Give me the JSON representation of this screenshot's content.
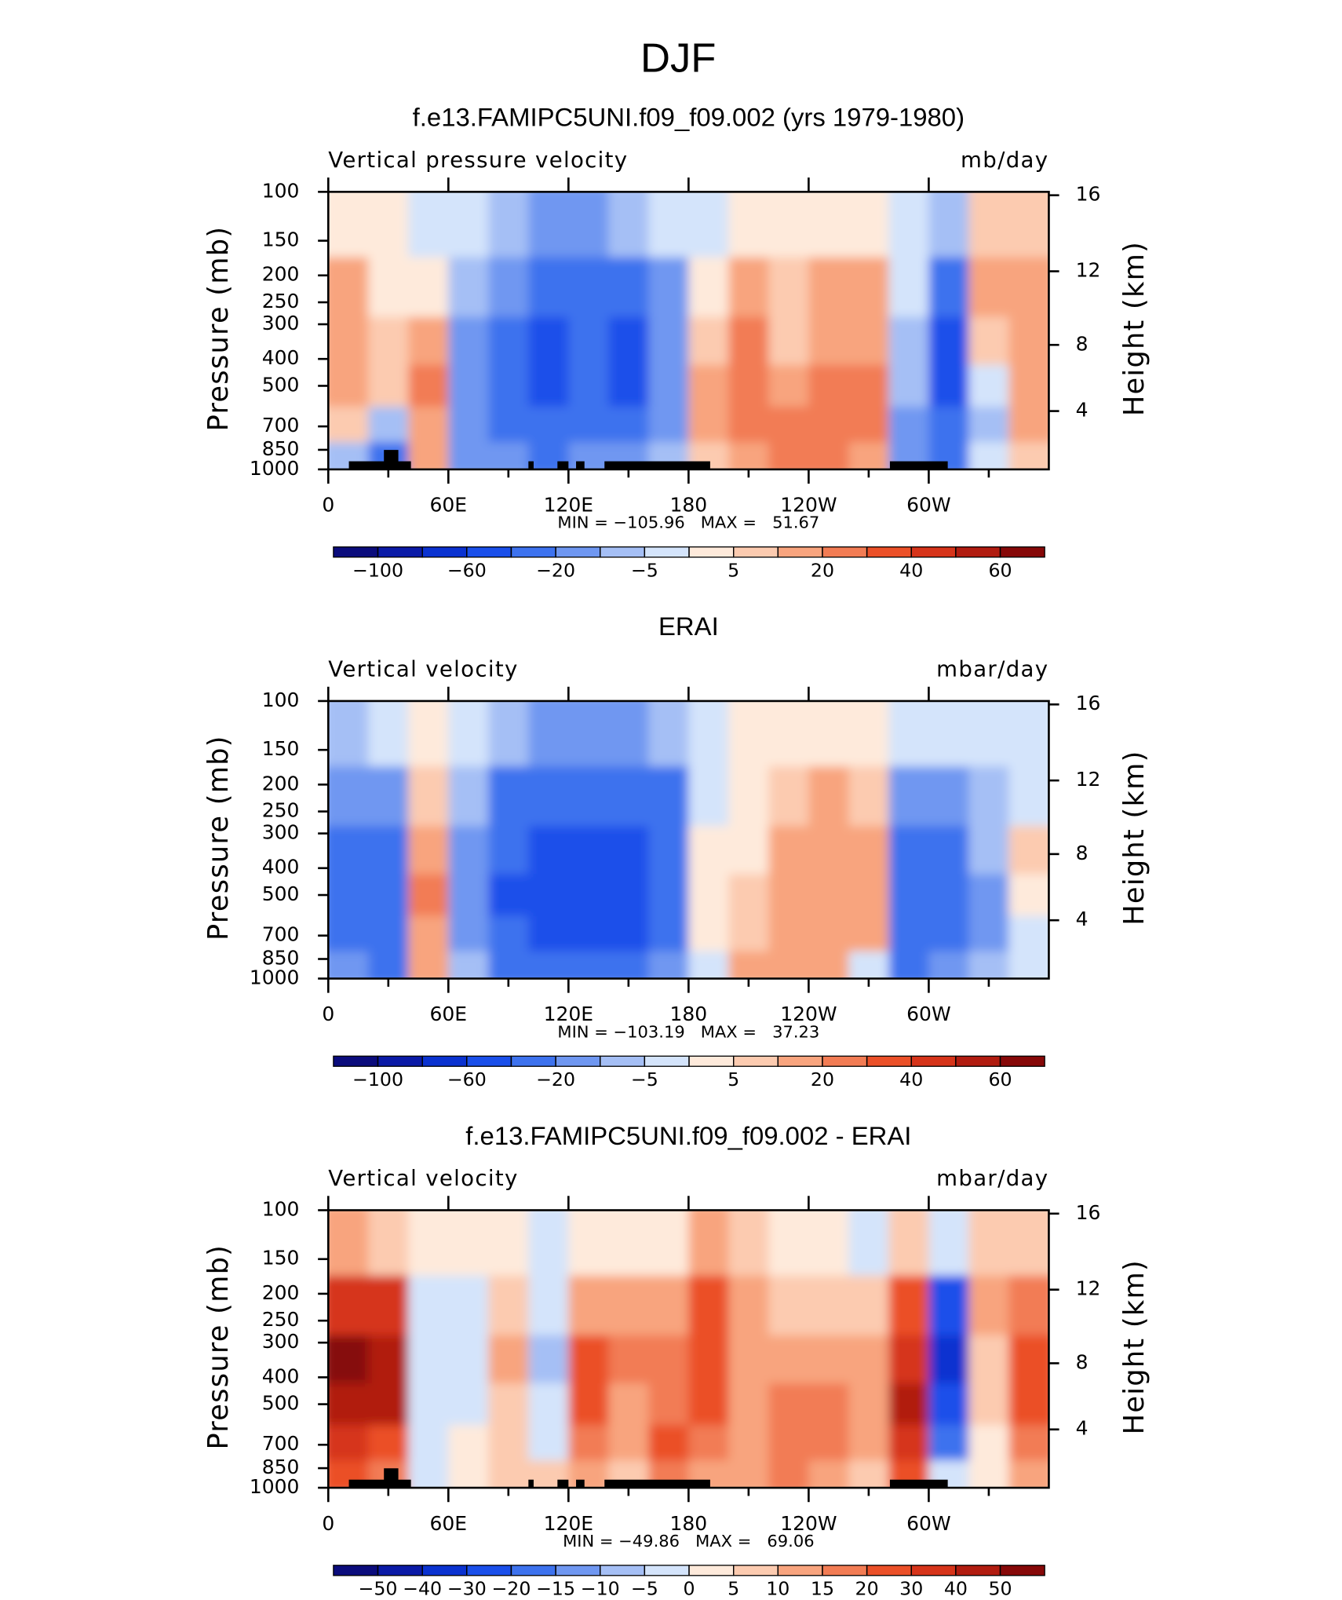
{
  "title": "DJF",
  "chart_data": [
    {
      "type": "contour",
      "title": "f.e13.FAMIPC5UNI.f09_f09.002 (yrs 1979-1980)",
      "left_label": "Vertical pressure velocity",
      "right_label": "mb/day",
      "ylabel": "Pressure (mb)",
      "y2label": "Height (km)",
      "x": [
        10,
        30,
        50,
        70,
        90,
        110,
        130,
        150,
        170,
        190,
        210,
        230,
        250,
        270,
        290,
        310,
        330,
        350
      ],
      "y": [
        900,
        700,
        500,
        350,
        225,
        130
      ],
      "z": [
        [
          -10,
          -30,
          10,
          -20,
          -20,
          -30,
          -20,
          -15,
          -10,
          5,
          15,
          20,
          20,
          15,
          -20,
          -30,
          -5,
          5
        ],
        [
          5,
          -10,
          15,
          -15,
          -25,
          -40,
          -30,
          -30,
          -15,
          10,
          20,
          20,
          20,
          20,
          -15,
          -40,
          -10,
          10
        ],
        [
          15,
          5,
          20,
          -15,
          -30,
          -50,
          -40,
          -45,
          -20,
          10,
          20,
          15,
          20,
          20,
          -10,
          -50,
          -5,
          15
        ],
        [
          15,
          5,
          15,
          -15,
          -30,
          -50,
          -40,
          -45,
          -20,
          5,
          20,
          5,
          15,
          15,
          -8,
          -55,
          5,
          15
        ],
        [
          10,
          3,
          3,
          -10,
          -20,
          -35,
          -30,
          -30,
          -15,
          3,
          10,
          8,
          10,
          10,
          -5,
          -40,
          10,
          10
        ],
        [
          3,
          2,
          -3,
          -3,
          -8,
          -15,
          -15,
          -10,
          -5,
          -3,
          3,
          3,
          3,
          3,
          -3,
          -10,
          5,
          5
        ]
      ],
      "xlim": [
        0,
        360
      ],
      "xticks": [
        0,
        {
          "value": 60,
          "label": "60E"
        },
        {
          "value": 120,
          "label": "120E"
        },
        180,
        {
          "value": 240,
          "label": "120W"
        },
        {
          "value": 300,
          "label": "60W"
        }
      ],
      "xminor_ticks": [
        30,
        90,
        150,
        210,
        270,
        330
      ],
      "ylim": [
        1000,
        100
      ],
      "ylog": true,
      "yticks": [
        100,
        150,
        200,
        250,
        300,
        400,
        500,
        700,
        850,
        1000
      ],
      "y2ticks": [
        4,
        8,
        12,
        16
      ],
      "stats": "MIN = −105.96   MAX =   51.67",
      "land_mask": true,
      "colorbar": {
        "levels": [
          {
            "value": -100,
            "label": "−100"
          },
          {
            "value": -80,
            "label": null
          },
          {
            "value": -60,
            "label": "−60"
          },
          {
            "value": -40,
            "label": null
          },
          {
            "value": -20,
            "label": "−20"
          },
          {
            "value": -10,
            "label": null
          },
          {
            "value": -5,
            "label": "−5"
          },
          {
            "value": 0,
            "label": null
          },
          5,
          {
            "value": 10,
            "label": null
          },
          20,
          {
            "value": 30,
            "label": null
          },
          40,
          {
            "value": 50,
            "label": null
          },
          60
        ],
        "colors": [
          "#0b0c7c",
          "#0a1aa6",
          "#0a32d0",
          "#1a4fea",
          "#3d72ee",
          "#6f97f1",
          "#a5bff5",
          "#d4e4fb",
          "#feeadb",
          "#fccbb0",
          "#f8a47e",
          "#f27c54",
          "#eb5028",
          "#d6341a",
          "#b11c10",
          "#860808"
        ]
      }
    },
    {
      "type": "contour",
      "title": "ERAI",
      "left_label": "Vertical velocity",
      "right_label": "mbar/day",
      "ylabel": "Pressure (mb)",
      "y2label": "Height (km)",
      "x": [
        10,
        30,
        50,
        70,
        90,
        110,
        130,
        150,
        170,
        190,
        210,
        230,
        250,
        270,
        290,
        310,
        330,
        350
      ],
      "y": [
        900,
        700,
        500,
        350,
        225,
        130
      ],
      "z": [
        [
          -20,
          -30,
          10,
          -10,
          -30,
          -30,
          -30,
          -30,
          -20,
          -3,
          10,
          10,
          10,
          -5,
          -40,
          -20,
          -10,
          -5
        ],
        [
          -30,
          -30,
          15,
          -15,
          -40,
          -45,
          -45,
          -45,
          -30,
          3,
          5,
          10,
          15,
          15,
          -30,
          -25,
          -15,
          -5
        ],
        [
          -30,
          -25,
          20,
          -20,
          -45,
          -50,
          -55,
          -50,
          -40,
          3,
          5,
          10,
          15,
          15,
          -35,
          -30,
          -15,
          3
        ],
        [
          -30,
          -25,
          15,
          -15,
          -40,
          -50,
          -55,
          -50,
          -35,
          3,
          3,
          10,
          15,
          10,
          -30,
          -25,
          -10,
          5
        ],
        [
          -20,
          -15,
          5,
          -10,
          -30,
          -40,
          -40,
          -40,
          -25,
          -3,
          3,
          5,
          10,
          5,
          -20,
          -20,
          -10,
          -3
        ],
        [
          -8,
          -5,
          3,
          -5,
          -10,
          -15,
          -15,
          -15,
          -10,
          -3,
          3,
          3,
          3,
          3,
          -5,
          -5,
          -3,
          -3
        ]
      ],
      "xlim": [
        0,
        360
      ],
      "xticks": [
        0,
        {
          "value": 60,
          "label": "60E"
        },
        {
          "value": 120,
          "label": "120E"
        },
        180,
        {
          "value": 240,
          "label": "120W"
        },
        {
          "value": 300,
          "label": "60W"
        }
      ],
      "xminor_ticks": [
        30,
        90,
        150,
        210,
        270,
        330
      ],
      "ylim": [
        1000,
        100
      ],
      "ylog": true,
      "yticks": [
        100,
        150,
        200,
        250,
        300,
        400,
        500,
        700,
        850,
        1000
      ],
      "y2ticks": [
        4,
        8,
        12,
        16
      ],
      "stats": "MIN = −103.19   MAX =   37.23",
      "land_mask": false,
      "colorbar": {
        "levels": [
          {
            "value": -100,
            "label": "−100"
          },
          {
            "value": -80,
            "label": null
          },
          {
            "value": -60,
            "label": "−60"
          },
          {
            "value": -40,
            "label": null
          },
          {
            "value": -20,
            "label": "−20"
          },
          {
            "value": -10,
            "label": null
          },
          {
            "value": -5,
            "label": "−5"
          },
          {
            "value": 0,
            "label": null
          },
          5,
          {
            "value": 10,
            "label": null
          },
          20,
          {
            "value": 30,
            "label": null
          },
          40,
          {
            "value": 50,
            "label": null
          },
          60
        ],
        "colors": [
          "#0b0c7c",
          "#0a1aa6",
          "#0a32d0",
          "#1a4fea",
          "#3d72ee",
          "#6f97f1",
          "#a5bff5",
          "#d4e4fb",
          "#feeadb",
          "#fccbb0",
          "#f8a47e",
          "#f27c54",
          "#eb5028",
          "#d6341a",
          "#b11c10",
          "#860808"
        ]
      }
    },
    {
      "type": "contour",
      "title": "f.e13.FAMIPC5UNI.f09_f09.002 - ERAI",
      "left_label": "Vertical velocity",
      "right_label": "mbar/day",
      "ylabel": "Pressure (mb)",
      "y2label": "Height (km)",
      "x": [
        10,
        30,
        50,
        70,
        90,
        110,
        130,
        150,
        170,
        190,
        210,
        230,
        250,
        270,
        290,
        310,
        330,
        350
      ],
      "y": [
        900,
        700,
        500,
        350,
        225,
        130
      ],
      "z": [
        [
          20,
          15,
          -5,
          3,
          5,
          5,
          10,
          5,
          15,
          10,
          10,
          15,
          10,
          5,
          20,
          -5,
          3,
          10
        ],
        [
          30,
          25,
          -5,
          3,
          5,
          -5,
          15,
          10,
          20,
          15,
          10,
          15,
          15,
          10,
          30,
          -20,
          3,
          15
        ],
        [
          45,
          40,
          -5,
          -3,
          5,
          -5,
          20,
          10,
          15,
          20,
          10,
          15,
          15,
          10,
          40,
          -30,
          5,
          20
        ],
        [
          50,
          45,
          -5,
          -5,
          10,
          -10,
          20,
          15,
          15,
          25,
          10,
          10,
          10,
          10,
          35,
          -40,
          5,
          20
        ],
        [
          35,
          30,
          -3,
          -3,
          5,
          -5,
          10,
          10,
          10,
          20,
          10,
          5,
          5,
          5,
          20,
          -30,
          10,
          15
        ],
        [
          10,
          5,
          3,
          3,
          3,
          -3,
          3,
          3,
          3,
          10,
          5,
          3,
          3,
          -3,
          5,
          -5,
          5,
          5
        ]
      ],
      "xlim": [
        0,
        360
      ],
      "xticks": [
        0,
        {
          "value": 60,
          "label": "60E"
        },
        {
          "value": 120,
          "label": "120E"
        },
        180,
        {
          "value": 240,
          "label": "120W"
        },
        {
          "value": 300,
          "label": "60W"
        }
      ],
      "xminor_ticks": [
        30,
        90,
        150,
        210,
        270,
        330
      ],
      "ylim": [
        1000,
        100
      ],
      "ylog": true,
      "yticks": [
        100,
        150,
        200,
        250,
        300,
        400,
        500,
        700,
        850,
        1000
      ],
      "y2ticks": [
        4,
        8,
        12,
        16
      ],
      "stats": "MIN = −49.86   MAX =   69.06",
      "land_mask": true,
      "colorbar": {
        "levels": [
          {
            "value": -50,
            "label": "−50"
          },
          {
            "value": -40,
            "label": "−40"
          },
          {
            "value": -30,
            "label": "−30"
          },
          {
            "value": -20,
            "label": "−20"
          },
          {
            "value": -15,
            "label": "−15"
          },
          {
            "value": -10,
            "label": "−10"
          },
          {
            "value": -5,
            "label": "−5"
          },
          0,
          5,
          10,
          15,
          20,
          30,
          40,
          50
        ],
        "colors": [
          "#0b0c7c",
          "#0a1aa6",
          "#0a32d0",
          "#1a4fea",
          "#3d72ee",
          "#6f97f1",
          "#a5bff5",
          "#d4e4fb",
          "#feeadb",
          "#fccbb0",
          "#f8a47e",
          "#f27c54",
          "#eb5028",
          "#d6341a",
          "#b11c10",
          "#860808"
        ]
      }
    }
  ]
}
